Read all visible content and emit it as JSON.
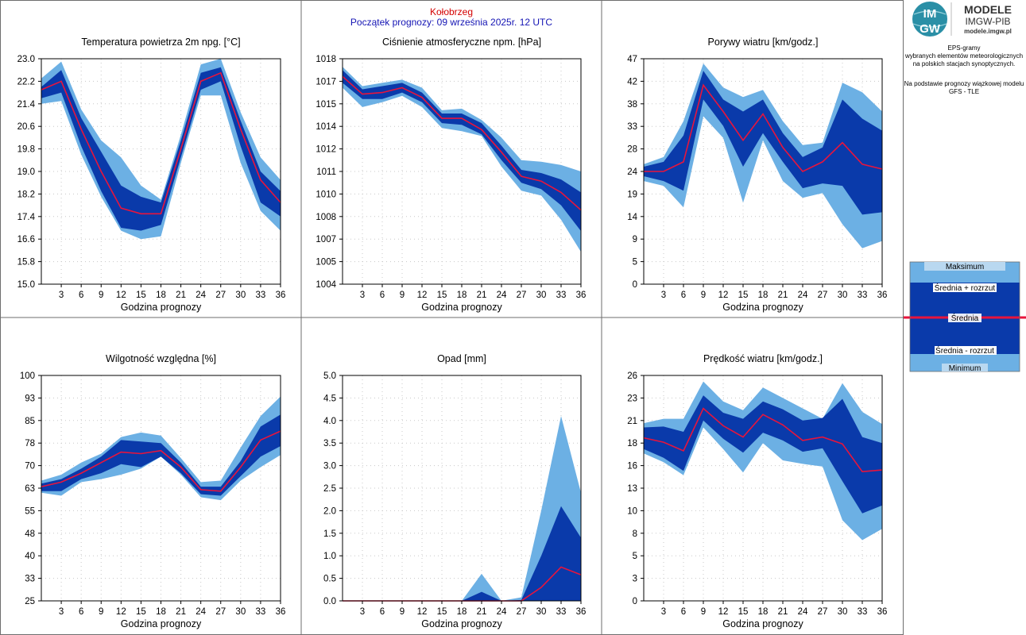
{
  "header": {
    "city": "Kołobrzeg",
    "start": "Początek prognozy: 09 września 2025r. 12 UTC"
  },
  "logo": {
    "mark_top": "IM",
    "mark_bottom": "GW",
    "title": "MODELE",
    "subtitle": "IMGW-PIB",
    "url": "modele.imgw.pl"
  },
  "info": {
    "line1": "EPS-gramy",
    "line2": "wybranych elementów meteorologicznych",
    "line3": "na polskich stacjach  synoptycznych.",
    "line4": "Na podstawie prognozy wiązkowej modelu",
    "line5": "GFS - TLE"
  },
  "legend": {
    "max": "Maksimum",
    "mean_plus": "Średnia + rozrzut",
    "mean": "Średnia",
    "mean_minus": "Średnia - rozrzut",
    "min": "Minimum"
  },
  "colors": {
    "light_band": "#6cb0e4",
    "dark_band": "#0a3aaa",
    "mean_line": "#e8143c",
    "grid": "#c8c8c8"
  },
  "chart_data": [
    {
      "type": "area",
      "title": "Temperatura powietrza 2m npg. [°C]",
      "xlabel": "Godzina prognozy",
      "x": [
        0,
        3,
        6,
        9,
        12,
        15,
        18,
        21,
        24,
        27,
        30,
        33,
        36
      ],
      "x_ticks": [
        "3",
        "6",
        "9",
        "12",
        "15",
        "18",
        "21",
        "24",
        "27",
        "30",
        "33",
        "36"
      ],
      "y_ticks": [
        "15.0",
        "15.8",
        "16.6",
        "17.4",
        "18.2",
        "19.0",
        "19.8",
        "20.6",
        "21.4",
        "22.2",
        "23.0"
      ],
      "ylim": [
        15.0,
        23.0
      ],
      "grid": true,
      "series": [
        {
          "name": "Maksimum",
          "values": [
            22.3,
            22.9,
            21.2,
            20.1,
            19.5,
            18.5,
            18.0,
            20.3,
            22.8,
            23.0,
            21.1,
            19.5,
            18.7
          ]
        },
        {
          "name": "Średnia + rozrzut",
          "values": [
            22.0,
            22.6,
            20.9,
            19.7,
            18.5,
            18.1,
            17.9,
            20.1,
            22.5,
            22.7,
            20.8,
            19.0,
            18.3
          ]
        },
        {
          "name": "Średnia",
          "values": [
            21.9,
            22.2,
            20.5,
            19.0,
            17.7,
            17.5,
            17.5,
            19.8,
            22.2,
            22.5,
            20.5,
            18.7,
            17.9
          ]
        },
        {
          "name": "Średnia - rozrzut",
          "values": [
            21.6,
            21.8,
            19.9,
            18.3,
            17.0,
            16.9,
            17.1,
            19.5,
            21.9,
            22.2,
            19.9,
            17.9,
            17.4
          ]
        },
        {
          "name": "Minimum",
          "values": [
            21.4,
            21.5,
            19.6,
            18.1,
            16.9,
            16.6,
            16.7,
            19.3,
            21.7,
            21.7,
            19.3,
            17.6,
            16.9
          ]
        }
      ]
    },
    {
      "type": "area",
      "title": "Ciśnienie atmosferyczne npm. [hPa]",
      "xlabel": "Godzina prognozy",
      "x": [
        0,
        3,
        6,
        9,
        12,
        15,
        18,
        21,
        24,
        27,
        30,
        33,
        36
      ],
      "x_ticks": [
        "3",
        "6",
        "9",
        "12",
        "15",
        "18",
        "21",
        "24",
        "27",
        "30",
        "33",
        "36"
      ],
      "y_ticks": [
        "1004",
        "1005",
        "1007",
        "1008",
        "1010",
        "1011",
        "1012",
        "1014",
        "1015",
        "1017",
        "1018"
      ],
      "ylim": [
        1004,
        1018
      ],
      "grid": true,
      "series": [
        {
          "name": "Maksimum",
          "values": [
            1017.5,
            1016.3,
            1016.5,
            1016.7,
            1016.2,
            1014.8,
            1014.9,
            1014.2,
            1013.1,
            1011.7,
            1011.6,
            1011.4,
            1011.0
          ]
        },
        {
          "name": "Średnia + rozrzut",
          "values": [
            1017.3,
            1016.1,
            1016.3,
            1016.5,
            1015.9,
            1014.6,
            1014.6,
            1014.0,
            1012.6,
            1011.1,
            1010.9,
            1010.5,
            1009.7
          ]
        },
        {
          "name": "Średnia",
          "values": [
            1016.9,
            1015.8,
            1015.9,
            1016.2,
            1015.6,
            1014.3,
            1014.3,
            1013.6,
            1012.2,
            1010.7,
            1010.4,
            1009.7,
            1008.6
          ]
        },
        {
          "name": "Średnia - rozrzut",
          "values": [
            1016.5,
            1015.5,
            1015.5,
            1015.9,
            1015.3,
            1014.0,
            1013.9,
            1013.3,
            1011.7,
            1010.3,
            1009.9,
            1008.9,
            1007.3
          ]
        },
        {
          "name": "Minimum",
          "values": [
            1016.2,
            1015.0,
            1015.3,
            1015.7,
            1015.0,
            1013.7,
            1013.5,
            1013.2,
            1011.3,
            1009.8,
            1009.5,
            1008.0,
            1006.0
          ]
        }
      ]
    },
    {
      "type": "area",
      "title": "Porywy wiatru [km/godz.]",
      "xlabel": "Godzina prognozy",
      "x": [
        0,
        3,
        6,
        9,
        12,
        15,
        18,
        21,
        24,
        27,
        30,
        33,
        36
      ],
      "x_ticks": [
        "3",
        "6",
        "9",
        "12",
        "15",
        "18",
        "21",
        "24",
        "27",
        "30",
        "33",
        "36"
      ],
      "y_ticks": [
        "0",
        "5",
        "9",
        "14",
        "19",
        "24",
        "28",
        "33",
        "38",
        "42",
        "47"
      ],
      "ylim": [
        0,
        47
      ],
      "grid": true,
      "series": [
        {
          "name": "Maksimum",
          "values": [
            25.0,
            26.5,
            34.0,
            46.0,
            41.0,
            39.0,
            40.5,
            34.0,
            29.0,
            29.5,
            42.0,
            40.0,
            36.0
          ]
        },
        {
          "name": "Średnia + rozrzut",
          "values": [
            24.5,
            25.5,
            31.0,
            44.5,
            38.5,
            36.0,
            38.5,
            31.5,
            26.5,
            28.5,
            38.5,
            34.5,
            32.0
          ]
        },
        {
          "name": "Średnia",
          "values": [
            23.5,
            23.5,
            25.5,
            41.5,
            36.0,
            30.0,
            35.5,
            28.5,
            23.5,
            25.5,
            29.5,
            25.0,
            24.0
          ]
        },
        {
          "name": "Średnia - rozrzut",
          "values": [
            22.5,
            21.5,
            19.5,
            38.5,
            33.0,
            24.5,
            31.5,
            25.5,
            20.0,
            21.0,
            20.5,
            14.5,
            15.0
          ]
        },
        {
          "name": "Minimum",
          "values": [
            21.5,
            20.5,
            16.0,
            35.0,
            30.5,
            17.0,
            30.0,
            21.5,
            18.0,
            19.0,
            12.5,
            7.5,
            9.0
          ]
        }
      ]
    },
    {
      "type": "area",
      "title": "Wilgotność względna [%]",
      "xlabel": "Godzina prognozy",
      "x": [
        0,
        3,
        6,
        9,
        12,
        15,
        18,
        21,
        24,
        27,
        30,
        33,
        36
      ],
      "x_ticks": [
        "3",
        "6",
        "9",
        "12",
        "15",
        "18",
        "21",
        "24",
        "27",
        "30",
        "33",
        "36"
      ],
      "y_ticks": [
        "25",
        "33",
        "40",
        "48",
        "55",
        "63",
        "70",
        "78",
        "85",
        "93",
        "100"
      ],
      "ylim": [
        25,
        100
      ],
      "grid": true,
      "series": [
        {
          "name": "Maksimum",
          "values": [
            65.0,
            67.0,
            71.0,
            74.0,
            79.5,
            81.0,
            80.0,
            72.5,
            64.5,
            65.0,
            76.0,
            86.5,
            93.0
          ]
        },
        {
          "name": "Średnia + rozrzut",
          "values": [
            64.0,
            65.5,
            69.0,
            73.0,
            78.5,
            78.0,
            77.5,
            71.0,
            63.0,
            63.0,
            71.5,
            83.0,
            87.0
          ]
        },
        {
          "name": "Średnia",
          "values": [
            63.0,
            64.5,
            67.5,
            71.0,
            74.5,
            74.0,
            75.0,
            69.5,
            62.0,
            61.5,
            69.5,
            78.5,
            81.5
          ]
        },
        {
          "name": "Średnia - rozrzut",
          "values": [
            61.5,
            61.5,
            65.5,
            67.5,
            70.5,
            69.5,
            73.0,
            67.5,
            60.5,
            60.0,
            66.5,
            73.0,
            76.5
          ]
        },
        {
          "name": "Minimum",
          "values": [
            61.0,
            60.0,
            64.5,
            65.5,
            67.0,
            69.0,
            73.0,
            67.0,
            59.5,
            58.5,
            65.0,
            69.5,
            73.5
          ]
        }
      ]
    },
    {
      "type": "area",
      "title": "Opad [mm]",
      "xlabel": "Godzina prognozy",
      "x": [
        0,
        3,
        6,
        9,
        12,
        15,
        18,
        21,
        24,
        27,
        30,
        33,
        36
      ],
      "x_ticks": [
        "3",
        "6",
        "9",
        "12",
        "15",
        "18",
        "21",
        "24",
        "27",
        "30",
        "33",
        "36"
      ],
      "y_ticks": [
        "0.0",
        "0.5",
        "1.0",
        "1.5",
        "2.0",
        "2.5",
        "3.0",
        "3.5",
        "4.0",
        "4.5",
        "5.0"
      ],
      "ylim": [
        0,
        5
      ],
      "grid": true,
      "series": [
        {
          "name": "Maksimum",
          "values": [
            0,
            0,
            0,
            0,
            0,
            0,
            0,
            0.6,
            0,
            0.08,
            2.0,
            4.1,
            2.4
          ]
        },
        {
          "name": "Średnia + rozrzut",
          "values": [
            0,
            0,
            0,
            0,
            0,
            0,
            0,
            0.2,
            0,
            0.02,
            1.0,
            2.1,
            1.4
          ]
        },
        {
          "name": "Średnia",
          "values": [
            0,
            0,
            0,
            0,
            0,
            0,
            0,
            0,
            0,
            0,
            0.3,
            0.75,
            0.58
          ]
        },
        {
          "name": "Średnia - rozrzut",
          "values": [
            0,
            0,
            0,
            0,
            0,
            0,
            0,
            0,
            0,
            0,
            0,
            0,
            0
          ]
        },
        {
          "name": "Minimum",
          "values": [
            0,
            0,
            0,
            0,
            0,
            0,
            0,
            0,
            0,
            0,
            0,
            0,
            0
          ]
        }
      ]
    },
    {
      "type": "area",
      "title": "Prędkość wiatru [km/godz.]",
      "xlabel": "Godzina prognozy",
      "x": [
        0,
        3,
        6,
        9,
        12,
        15,
        18,
        21,
        24,
        27,
        30,
        33,
        36
      ],
      "x_ticks": [
        "3",
        "6",
        "9",
        "12",
        "15",
        "18",
        "21",
        "24",
        "27",
        "30",
        "33",
        "36"
      ],
      "y_ticks": [
        "0",
        "3",
        "5",
        "8",
        "10",
        "13",
        "16",
        "18",
        "21",
        "23",
        "26"
      ],
      "ylim": [
        0,
        26
      ],
      "grid": true,
      "series": [
        {
          "name": "Maksimum",
          "values": [
            20.5,
            21.0,
            21.0,
            25.3,
            23.0,
            22.0,
            24.6,
            23.4,
            22.2,
            21.0,
            25.1,
            21.8,
            20.4
          ]
        },
        {
          "name": "Średnia + rozrzut",
          "values": [
            20.0,
            20.1,
            19.5,
            23.7,
            21.7,
            21.0,
            23.0,
            22.1,
            20.8,
            21.1,
            23.3,
            18.9,
            18.2
          ]
        },
        {
          "name": "Średnia",
          "values": [
            18.8,
            18.3,
            17.3,
            22.2,
            20.2,
            18.9,
            21.5,
            20.3,
            18.5,
            18.9,
            18.1,
            14.9,
            15.1
          ]
        },
        {
          "name": "Średnia - rozrzut",
          "values": [
            17.5,
            16.5,
            15.0,
            20.8,
            18.7,
            17.1,
            19.4,
            18.5,
            17.2,
            17.6,
            13.8,
            10.1,
            11.0
          ]
        },
        {
          "name": "Minimum",
          "values": [
            17.0,
            16.0,
            14.5,
            20.0,
            17.5,
            14.8,
            18.2,
            16.2,
            15.8,
            15.5,
            9.3,
            7.0,
            8.3
          ]
        }
      ]
    }
  ]
}
